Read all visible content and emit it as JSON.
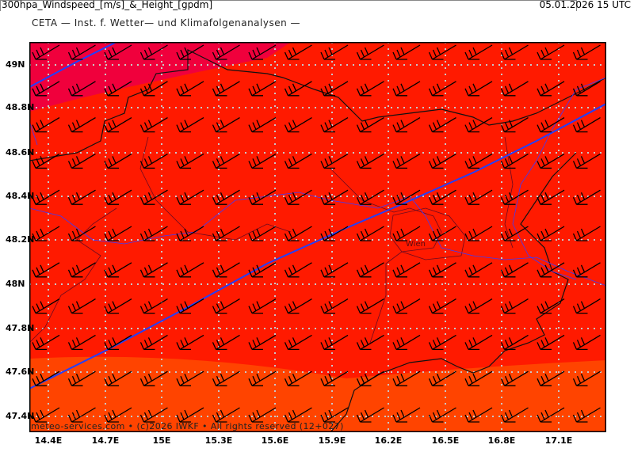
{
  "header": {
    "title": "CETA — Inst. f. Wetter— und Klimafolgenanalysen —",
    "parameter": "300hpa_Windspeed_[m/s]_&_Height_[gpdm]",
    "valid_time": "05.01.2026 15 UTC"
  },
  "map": {
    "lat_labels": [
      "49N",
      "48.8N",
      "48.6N",
      "48.4N",
      "48.2N",
      "48N",
      "47.8N",
      "47.6N",
      "47.4N"
    ],
    "lon_labels": [
      "14.4E",
      "14.7E",
      "15E",
      "15.3E",
      "15.6E",
      "15.9E",
      "16.2E",
      "16.5E",
      "16.8E",
      "17.1E"
    ],
    "city_label": "Wien",
    "colors": {
      "high": "#f0003c",
      "mid": "#ff1a00",
      "low": "#ff4400",
      "contour": "#2040ff"
    }
  },
  "footer": "meteo-services.com • (c)2026 IWKF • All rights reserved (12+027)"
}
